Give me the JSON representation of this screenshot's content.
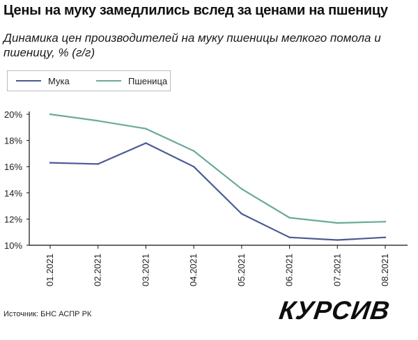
{
  "header": {
    "title": "Цены на муку замедлились вслед за ценами на пшеницу",
    "subtitle": "Динамика цен производителей на муку пшеницы мелкого помола и пшеницу, % (г/г)"
  },
  "footer": {
    "source": "Источник: БНС АСПР РК",
    "logo_text": "КУРСИВ"
  },
  "colors": {
    "flour": "#4a5a93",
    "wheat": "#6aaa9a",
    "axis": "#111111",
    "grid": "#e9e9e9"
  },
  "chart_data": {
    "type": "line",
    "title": "Динамика цен производителей на муку пшеницы мелкого помола и пшеницу, % (г/г)",
    "xlabel": "",
    "ylabel": "",
    "categories": [
      "01.2021",
      "02.2021",
      "03.2021",
      "04.2021",
      "05.2021",
      "06.2021",
      "07.2021",
      "08.2021"
    ],
    "ylim": [
      10,
      20
    ],
    "yticks": [
      10,
      12,
      14,
      16,
      18,
      20
    ],
    "ytick_labels": [
      "10%",
      "12%",
      "14%",
      "16%",
      "18%",
      "20%"
    ],
    "legend": "top-left",
    "grid": false,
    "series": [
      {
        "name": "Мука",
        "color": "#4a5a93",
        "values": [
          16.3,
          16.2,
          17.8,
          16.0,
          12.4,
          10.6,
          10.4,
          10.6
        ]
      },
      {
        "name": "Пшеница",
        "color": "#6aaa9a",
        "values": [
          20.0,
          19.5,
          18.9,
          17.2,
          14.3,
          12.1,
          11.7,
          11.8
        ]
      }
    ]
  }
}
